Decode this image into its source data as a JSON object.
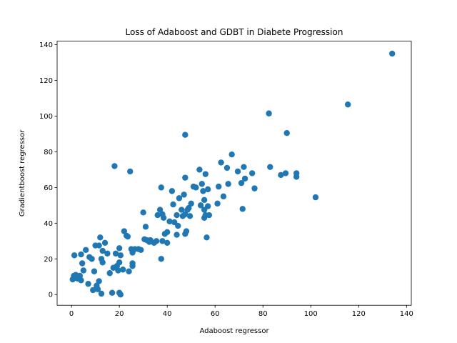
{
  "chart_data": {
    "type": "scatter",
    "title": "Loss of Adaboost and GDBT in Diabete Progression",
    "xlabel": "Adaboost regressor",
    "ylabel": "Gradientboost regressor",
    "xlim": [
      -6,
      142
    ],
    "ylim": [
      -6,
      142
    ],
    "xticks": [
      0,
      20,
      40,
      60,
      80,
      100,
      120,
      140
    ],
    "yticks": [
      0,
      20,
      40,
      60,
      80,
      100,
      120,
      140
    ],
    "grid": false,
    "color": "#1f77b4",
    "series": [
      {
        "points": [
          [
            0.5,
            8.5
          ],
          [
            1,
            10.5
          ],
          [
            1.2,
            22
          ],
          [
            1.8,
            11
          ],
          [
            2.5,
            9
          ],
          [
            3.5,
            10.5
          ],
          [
            4,
            22.5
          ],
          [
            4,
            8
          ],
          [
            4.5,
            17.5
          ],
          [
            5,
            13.5
          ],
          [
            6,
            25
          ],
          [
            7,
            6
          ],
          [
            7.5,
            21
          ],
          [
            8.5,
            20
          ],
          [
            9,
            2.5
          ],
          [
            9.5,
            13
          ],
          [
            10,
            27.5
          ],
          [
            10.5,
            5
          ],
          [
            11,
            3
          ],
          [
            11.5,
            7.5
          ],
          [
            11.5,
            27.5
          ],
          [
            12,
            32
          ],
          [
            12.5,
            0.5
          ],
          [
            12.5,
            20
          ],
          [
            13,
            18
          ],
          [
            13,
            24.5
          ],
          [
            14,
            29
          ],
          [
            15,
            23
          ],
          [
            16,
            12
          ],
          [
            17,
            1
          ],
          [
            17.5,
            15
          ],
          [
            18,
            72
          ],
          [
            18.5,
            23
          ],
          [
            19,
            16
          ],
          [
            19.5,
            13.5
          ],
          [
            20,
            1
          ],
          [
            20,
            26
          ],
          [
            20,
            18
          ],
          [
            20.5,
            0
          ],
          [
            20.5,
            22
          ],
          [
            21.5,
            14
          ],
          [
            22,
            35.5
          ],
          [
            23,
            33
          ],
          [
            23.5,
            32.5
          ],
          [
            24,
            13
          ],
          [
            24.5,
            69
          ],
          [
            25,
            25.5
          ],
          [
            25.5,
            23.5
          ],
          [
            25.5,
            16
          ],
          [
            25.5,
            17.5
          ],
          [
            26.5,
            25.5
          ],
          [
            28,
            25.5
          ],
          [
            29,
            25
          ],
          [
            30,
            46
          ],
          [
            30.5,
            31
          ],
          [
            31,
            38
          ],
          [
            31.5,
            30.5
          ],
          [
            32.5,
            29.5
          ],
          [
            33,
            30.5
          ],
          [
            34.5,
            29
          ],
          [
            35.5,
            30
          ],
          [
            36,
            44.5
          ],
          [
            37,
            47.5
          ],
          [
            37.5,
            20
          ],
          [
            37.5,
            60
          ],
          [
            38,
            45
          ],
          [
            38,
            30
          ],
          [
            38.5,
            43
          ],
          [
            39,
            34
          ],
          [
            40,
            29
          ],
          [
            40,
            35
          ],
          [
            41,
            41
          ],
          [
            42,
            58
          ],
          [
            42.5,
            50.5
          ],
          [
            43,
            40.5
          ],
          [
            44,
            33.5
          ],
          [
            44,
            44.5
          ],
          [
            44.5,
            38.5
          ],
          [
            45,
            54
          ],
          [
            46,
            47.5
          ],
          [
            46.5,
            44
          ],
          [
            47,
            56
          ],
          [
            47.5,
            34
          ],
          [
            47.5,
            45
          ],
          [
            47.5,
            89.5
          ],
          [
            47.5,
            65.5
          ],
          [
            48,
            35.5
          ],
          [
            48.5,
            47.5
          ],
          [
            49,
            48.5
          ],
          [
            49.5,
            44
          ],
          [
            50,
            51
          ],
          [
            51,
            60.5
          ],
          [
            52,
            60
          ],
          [
            53.5,
            70
          ],
          [
            54,
            50
          ],
          [
            54.5,
            62
          ],
          [
            55,
            58
          ],
          [
            55.5,
            47.5
          ],
          [
            55.5,
            53
          ],
          [
            55.5,
            43
          ],
          [
            56,
            67.5
          ],
          [
            56,
            44.5
          ],
          [
            56.5,
            32
          ],
          [
            57,
            59
          ],
          [
            57,
            49.5
          ],
          [
            57.5,
            44.5
          ],
          [
            61,
            51
          ],
          [
            61.5,
            60.5
          ],
          [
            62.5,
            74
          ],
          [
            63.5,
            55
          ],
          [
            65,
            71
          ],
          [
            65.5,
            62
          ],
          [
            67,
            78.5
          ],
          [
            69.5,
            69
          ],
          [
            71,
            62.5
          ],
          [
            71.5,
            48
          ],
          [
            72,
            71.5
          ],
          [
            72.5,
            65
          ],
          [
            75.5,
            68
          ],
          [
            76.5,
            59.5
          ],
          [
            82.5,
            101.5
          ],
          [
            83,
            71.5
          ],
          [
            87.5,
            67
          ],
          [
            89.5,
            68
          ],
          [
            90,
            90.5
          ],
          [
            94,
            68
          ],
          [
            94,
            66
          ],
          [
            102,
            54.5
          ],
          [
            115.5,
            106.5
          ],
          [
            134,
            135
          ]
        ]
      }
    ]
  }
}
